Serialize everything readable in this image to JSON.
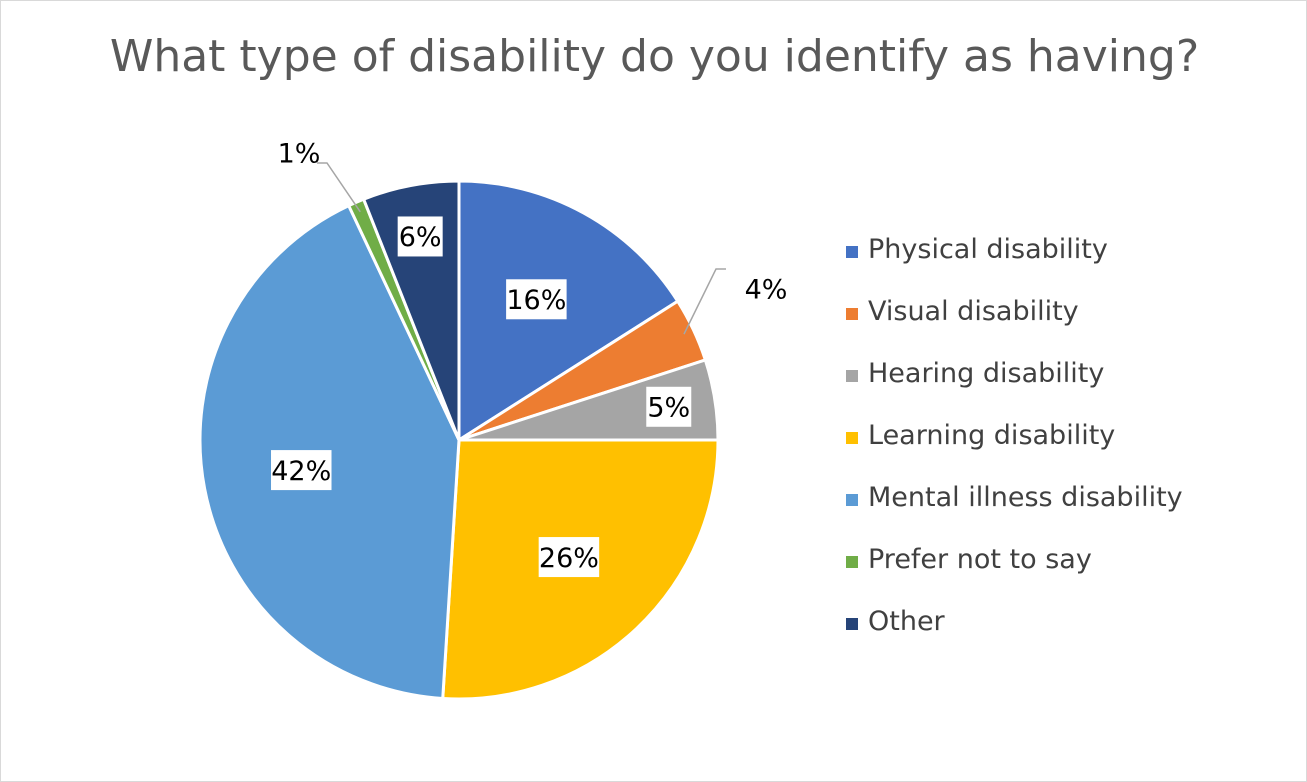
{
  "chart_data": {
    "type": "pie",
    "title": "What type of disability do you identify as having?",
    "slices": [
      {
        "label": "Physical disability",
        "value": 16,
        "display": "16%",
        "color": "#4472c4"
      },
      {
        "label": "Visual disability",
        "value": 4,
        "display": "4%",
        "color": "#ed7d31"
      },
      {
        "label": "Hearing disability",
        "value": 5,
        "display": "5%",
        "color": "#a5a5a5"
      },
      {
        "label": "Learning disability",
        "value": 26,
        "display": "26%",
        "color": "#ffc000"
      },
      {
        "label": "Mental illness disability",
        "value": 42,
        "display": "42%",
        "color": "#5b9bd5"
      },
      {
        "label": "Prefer not to say",
        "value": 1,
        "display": "1%",
        "color": "#70ad47"
      },
      {
        "label": "Other",
        "value": 6,
        "display": "6%",
        "color": "#264478"
      }
    ],
    "legend_position": "right"
  }
}
